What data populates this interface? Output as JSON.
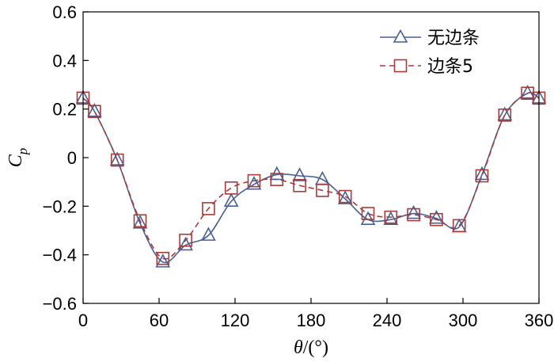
{
  "chart_data": {
    "type": "line",
    "title": "",
    "xlabel_var": "θ",
    "xlabel_unit": "/(°)",
    "ylabel_main": "C",
    "ylabel_sub": "p",
    "xlim": [
      0,
      360
    ],
    "ylim": [
      -0.6,
      0.6
    ],
    "xticks": [
      0,
      60,
      120,
      180,
      240,
      300,
      360
    ],
    "yticks": [
      -0.6,
      -0.4,
      -0.2,
      0,
      0.2,
      0.4,
      0.6
    ],
    "xtick_labels": [
      "0",
      "60",
      "120",
      "180",
      "240",
      "300",
      "360"
    ],
    "ytick_labels": [
      "−0.6",
      "−0.4",
      "−0.2",
      "0",
      "0.2",
      "0.4",
      "0.6"
    ],
    "legend_position": "top-right",
    "series": [
      {
        "name": "无边条",
        "color": "#4a5f94",
        "marker": "triangle",
        "line": "solid",
        "x": [
          0,
          9,
          27,
          45,
          63,
          81,
          99,
          117,
          135,
          153,
          171,
          189,
          207,
          225,
          243,
          261,
          279,
          297,
          315,
          333,
          351,
          360
        ],
        "y": [
          0.245,
          0.19,
          -0.01,
          -0.27,
          -0.43,
          -0.36,
          -0.32,
          -0.18,
          -0.11,
          -0.07,
          -0.075,
          -0.09,
          -0.17,
          -0.255,
          -0.255,
          -0.23,
          -0.25,
          -0.285,
          -0.07,
          0.175,
          0.265,
          0.245
        ]
      },
      {
        "name": "边条5",
        "color": "#a83a3a",
        "marker": "square",
        "line": "dashed",
        "x": [
          0,
          9,
          27,
          45,
          63,
          81,
          99,
          117,
          135,
          153,
          171,
          189,
          207,
          225,
          243,
          261,
          279,
          297,
          315,
          333,
          351,
          360
        ],
        "y": [
          0.245,
          0.19,
          -0.01,
          -0.26,
          -0.415,
          -0.34,
          -0.21,
          -0.125,
          -0.095,
          -0.09,
          -0.115,
          -0.135,
          -0.16,
          -0.23,
          -0.245,
          -0.235,
          -0.255,
          -0.28,
          -0.075,
          0.175,
          0.265,
          0.245
        ]
      }
    ]
  }
}
